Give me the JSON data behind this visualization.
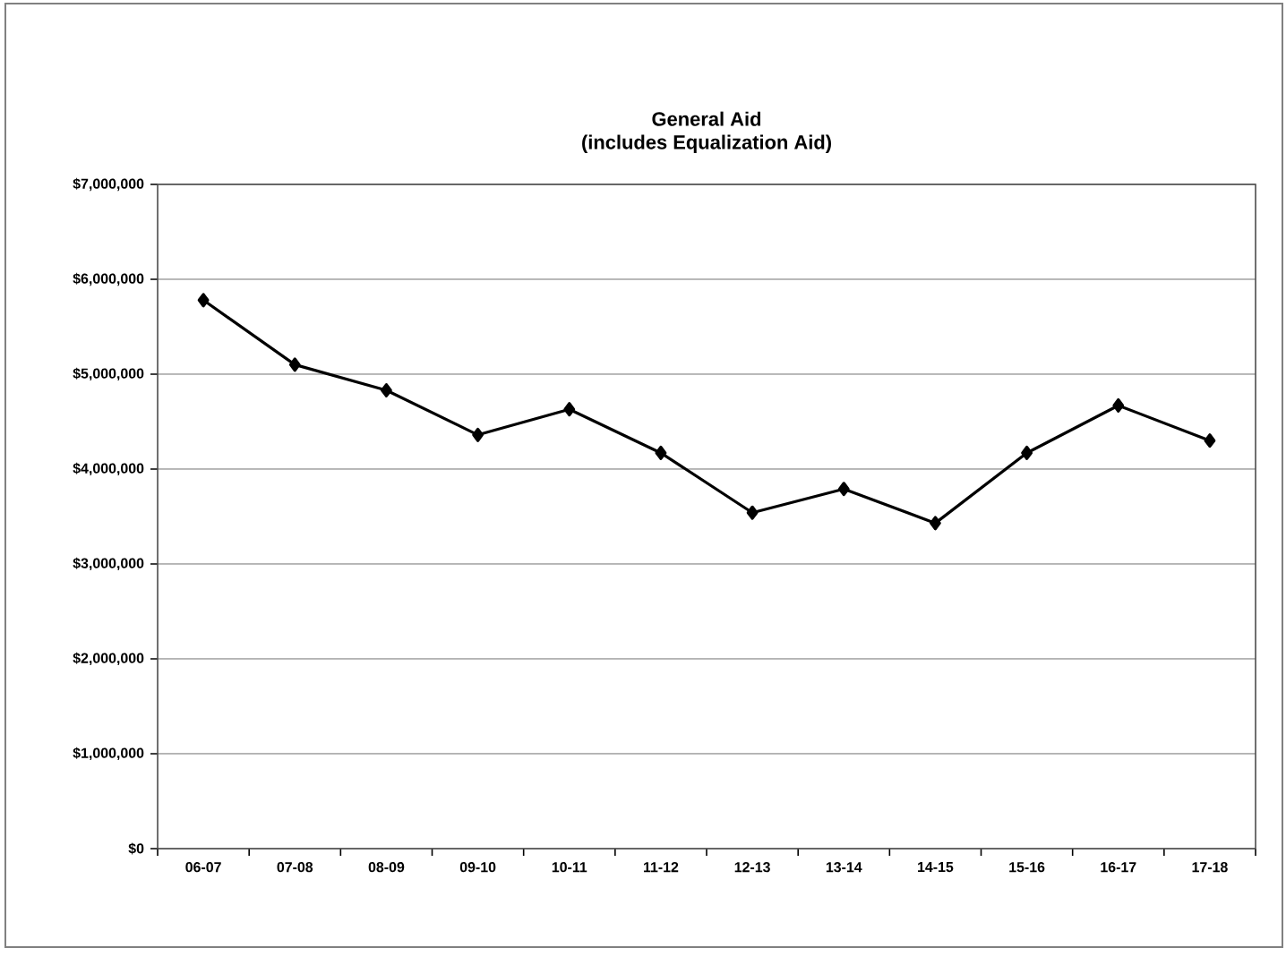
{
  "chart_data": {
    "type": "line",
    "title": "General Aid\n(includes Equalization Aid)",
    "categories": [
      "06-07",
      "07-08",
      "08-09",
      "09-10",
      "10-11",
      "11-12",
      "12-13",
      "13-14",
      "14-15",
      "15-16",
      "16-17",
      "17-18"
    ],
    "series": [
      {
        "color": "#000000",
        "values": [
          5780000,
          5100000,
          4830000,
          4360000,
          4630000,
          4170000,
          3540000,
          3790000,
          3430000,
          4170000,
          4670000,
          4300000
        ]
      }
    ],
    "ylim": [
      0,
      7000000
    ],
    "yticks": [
      {
        "value": 0,
        "label": "$0"
      },
      {
        "value": 1000000,
        "label": "$1,000,000"
      },
      {
        "value": 2000000,
        "label": "$2,000,000"
      },
      {
        "value": 3000000,
        "label": "$3,000,000"
      },
      {
        "value": 4000000,
        "label": "$4,000,000"
      },
      {
        "value": 5000000,
        "label": "$5,000,000"
      },
      {
        "value": 6000000,
        "label": "$6,000,000"
      },
      {
        "value": 7000000,
        "label": "$7,000,000"
      }
    ],
    "grid": "y",
    "marker": "diamond",
    "line_style": "solid"
  }
}
